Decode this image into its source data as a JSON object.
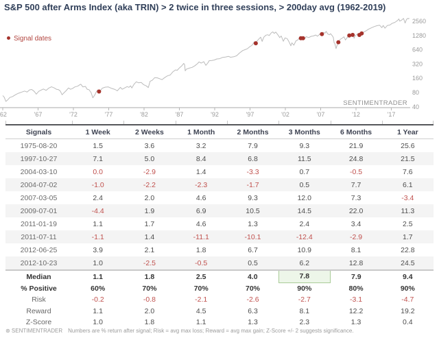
{
  "title": "S&P 500 after Arms Index (aka TRIN) > 2 twice in three sessions, > 200day avg (1962-2019)",
  "legend": {
    "label": "Signal dates"
  },
  "watermark": "SENTIMENTRADER",
  "footer": {
    "brand": "⊛ SENTIMENTRADER",
    "text": "Numbers are % return after signal; Risk = avg max loss; Reward = avg max gain; Z-Score +/- 2 suggests significance."
  },
  "colors": {
    "title": "#31405a",
    "line": "#bbbbbb",
    "signal_dot": "#a5332c",
    "negative": "#c0504d",
    "highlight_bg": "#edf6e9",
    "highlight_border": "#a9cb97",
    "axis_label": "#9a9a9a"
  },
  "chart_data": {
    "type": "line",
    "title": "S&P 500 after Arms Index (aka TRIN) > 2 twice in three sessions, > 200day avg (1962-2019)",
    "xlabel": "",
    "ylabel": "",
    "y_scale": "log2",
    "y_ticks": [
      "2560",
      "1280",
      "640",
      "320",
      "160",
      "80",
      "40"
    ],
    "y_tick_values": [
      2560,
      1280,
      640,
      320,
      160,
      80,
      40
    ],
    "x_ticks": [
      "'62",
      "'67",
      "'72",
      "'77",
      "'82",
      "'87",
      "'92",
      "'97",
      "'02",
      "'07",
      "'12",
      "'17"
    ],
    "x_tick_years": [
      1962,
      1967,
      1972,
      1977,
      1982,
      1987,
      1992,
      1997,
      2002,
      2007,
      2012,
      2017
    ],
    "x_range": [
      1962,
      2019.6
    ],
    "legend_position": "top-left",
    "grid": false,
    "series": [
      {
        "name": "S&P 500",
        "points": [
          [
            1962.0,
            69
          ],
          [
            1962.2,
            64
          ],
          [
            1962.45,
            52
          ],
          [
            1962.7,
            56
          ],
          [
            1963.0,
            63
          ],
          [
            1963.4,
            66
          ],
          [
            1963.8,
            72
          ],
          [
            1964.2,
            77
          ],
          [
            1964.7,
            82
          ],
          [
            1965.1,
            86
          ],
          [
            1965.45,
            82
          ],
          [
            1965.8,
            91
          ],
          [
            1966.1,
            93
          ],
          [
            1966.45,
            85
          ],
          [
            1966.75,
            74
          ],
          [
            1967.1,
            85
          ],
          [
            1967.5,
            91
          ],
          [
            1967.75,
            95
          ],
          [
            1968.15,
            89
          ],
          [
            1968.5,
            99
          ],
          [
            1968.9,
            106
          ],
          [
            1969.3,
            100
          ],
          [
            1969.6,
            94
          ],
          [
            1969.9,
            92
          ],
          [
            1970.15,
            86
          ],
          [
            1970.4,
            72
          ],
          [
            1970.7,
            80
          ],
          [
            1970.95,
            87
          ],
          [
            1971.3,
            100
          ],
          [
            1971.6,
            94
          ],
          [
            1971.85,
            97
          ],
          [
            1972.2,
            105
          ],
          [
            1972.6,
            109
          ],
          [
            1972.95,
            118
          ],
          [
            1973.05,
            120
          ],
          [
            1973.35,
            105
          ],
          [
            1973.7,
            108
          ],
          [
            1973.95,
            94
          ],
          [
            1974.2,
            92
          ],
          [
            1974.5,
            80
          ],
          [
            1974.75,
            62
          ],
          [
            1975.0,
            70
          ],
          [
            1975.25,
            83
          ],
          [
            1975.45,
            91
          ],
          [
            1975.63,
            84
          ],
          [
            1975.85,
            89
          ],
          [
            1976.1,
            99
          ],
          [
            1976.5,
            104
          ],
          [
            1976.95,
            105
          ],
          [
            1977.4,
            98
          ],
          [
            1977.9,
            93
          ],
          [
            1978.2,
            87
          ],
          [
            1978.65,
            103
          ],
          [
            1978.9,
            94
          ],
          [
            1979.2,
            99
          ],
          [
            1979.6,
            107
          ],
          [
            1979.85,
            103
          ],
          [
            1980.1,
            111
          ],
          [
            1980.27,
            100
          ],
          [
            1980.6,
            121
          ],
          [
            1980.9,
            135
          ],
          [
            1981.2,
            129
          ],
          [
            1981.6,
            131
          ],
          [
            1981.95,
            117
          ],
          [
            1982.3,
            111
          ],
          [
            1982.6,
            102
          ],
          [
            1982.85,
            138
          ],
          [
            1983.15,
            145
          ],
          [
            1983.5,
            165
          ],
          [
            1983.9,
            163
          ],
          [
            1984.3,
            155
          ],
          [
            1984.55,
            150
          ],
          [
            1984.9,
            165
          ],
          [
            1985.3,
            180
          ],
          [
            1985.7,
            188
          ],
          [
            1986.1,
            220
          ],
          [
            1986.45,
            240
          ],
          [
            1986.7,
            236
          ],
          [
            1987.0,
            265
          ],
          [
            1987.3,
            290
          ],
          [
            1987.62,
            330
          ],
          [
            1987.75,
            310
          ],
          [
            1987.83,
            230
          ],
          [
            1988.0,
            250
          ],
          [
            1988.4,
            262
          ],
          [
            1988.8,
            272
          ],
          [
            1989.2,
            295
          ],
          [
            1989.6,
            330
          ],
          [
            1989.78,
            355
          ],
          [
            1990.1,
            335
          ],
          [
            1990.45,
            360
          ],
          [
            1990.75,
            300
          ],
          [
            1991.05,
            340
          ],
          [
            1991.2,
            375
          ],
          [
            1991.6,
            380
          ],
          [
            1991.95,
            390
          ],
          [
            1992.3,
            410
          ],
          [
            1992.7,
            415
          ],
          [
            1993.1,
            440
          ],
          [
            1993.5,
            450
          ],
          [
            1993.95,
            465
          ],
          [
            1994.25,
            445
          ],
          [
            1994.7,
            455
          ],
          [
            1995.1,
            478
          ],
          [
            1995.5,
            545
          ],
          [
            1995.95,
            615
          ],
          [
            1996.3,
            645
          ],
          [
            1996.6,
            670
          ],
          [
            1996.95,
            740
          ],
          [
            1997.25,
            790
          ],
          [
            1997.5,
            890
          ],
          [
            1997.62,
            950
          ],
          [
            1997.72,
            920
          ],
          [
            1997.82,
            877
          ],
          [
            1998.0,
            980
          ],
          [
            1998.3,
            1100
          ],
          [
            1998.5,
            1180
          ],
          [
            1998.72,
            960
          ],
          [
            1998.95,
            1180
          ],
          [
            1999.25,
            1300
          ],
          [
            1999.5,
            1330
          ],
          [
            1999.72,
            1280
          ],
          [
            2000.0,
            1455
          ],
          [
            2000.22,
            1527
          ],
          [
            2000.42,
            1420
          ],
          [
            2000.65,
            1510
          ],
          [
            2000.95,
            1320
          ],
          [
            2001.2,
            1160
          ],
          [
            2001.42,
            1250
          ],
          [
            2001.72,
            966
          ],
          [
            2001.95,
            1140
          ],
          [
            2002.25,
            1100
          ],
          [
            2002.5,
            950
          ],
          [
            2002.78,
            777
          ],
          [
            2002.92,
            900
          ],
          [
            2003.2,
            800
          ],
          [
            2003.5,
            990
          ],
          [
            2003.75,
            1030
          ],
          [
            2004.0,
            1130
          ],
          [
            2004.19,
            1124
          ],
          [
            2004.5,
            1125
          ],
          [
            2004.65,
            1065
          ],
          [
            2004.95,
            1210
          ],
          [
            2005.3,
            1160
          ],
          [
            2005.65,
            1230
          ],
          [
            2005.95,
            1250
          ],
          [
            2006.3,
            1310
          ],
          [
            2006.55,
            1240
          ],
          [
            2006.95,
            1400
          ],
          [
            2007.17,
            1374
          ],
          [
            2007.45,
            1480
          ],
          [
            2007.6,
            1430
          ],
          [
            2007.78,
            1565
          ],
          [
            2008.0,
            1380
          ],
          [
            2008.25,
            1330
          ],
          [
            2008.4,
            1400
          ],
          [
            2008.65,
            1260
          ],
          [
            2008.8,
            1160
          ],
          [
            2008.9,
            900
          ],
          [
            2009.0,
            870
          ],
          [
            2009.17,
            677
          ],
          [
            2009.35,
            820
          ],
          [
            2009.5,
            923
          ],
          [
            2009.75,
            1060
          ],
          [
            2010.0,
            1115
          ],
          [
            2010.3,
            1200
          ],
          [
            2010.5,
            1030
          ],
          [
            2010.8,
            1180
          ],
          [
            2011.05,
            1282
          ],
          [
            2011.3,
            1330
          ],
          [
            2011.52,
            1319
          ],
          [
            2011.6,
            1345
          ],
          [
            2011.73,
            1120
          ],
          [
            2011.85,
            1250
          ],
          [
            2012.0,
            1310
          ],
          [
            2012.25,
            1400
          ],
          [
            2012.48,
            1314
          ],
          [
            2012.65,
            1440
          ],
          [
            2012.81,
            1413
          ],
          [
            2013.0,
            1480
          ],
          [
            2013.4,
            1600
          ],
          [
            2013.8,
            1750
          ],
          [
            2014.2,
            1870
          ],
          [
            2014.6,
            1980
          ],
          [
            2014.95,
            2060
          ],
          [
            2015.35,
            2110
          ],
          [
            2015.65,
            1880
          ],
          [
            2015.85,
            2080
          ],
          [
            2016.1,
            1830
          ],
          [
            2016.45,
            2090
          ],
          [
            2016.8,
            2130
          ],
          [
            2017.1,
            2300
          ],
          [
            2017.5,
            2430
          ],
          [
            2017.9,
            2670
          ],
          [
            2018.07,
            2870
          ],
          [
            2018.18,
            2580
          ],
          [
            2018.45,
            2700
          ],
          [
            2018.73,
            2930
          ],
          [
            2018.95,
            2350
          ],
          [
            2019.15,
            2800
          ],
          [
            2019.35,
            2945
          ],
          [
            2019.45,
            2885
          ],
          [
            2019.55,
            2960
          ]
        ]
      }
    ],
    "signals": [
      {
        "date": "1975-08-20",
        "year": 1975.63,
        "price": 84
      },
      {
        "date": "1997-10-27",
        "year": 1997.82,
        "price": 877
      },
      {
        "date": "2004-03-10",
        "year": 2004.19,
        "price": 1124
      },
      {
        "date": "2004-07-02",
        "year": 2004.5,
        "price": 1125
      },
      {
        "date": "2007-03-05",
        "year": 2007.17,
        "price": 1374
      },
      {
        "date": "2009-07-01",
        "year": 2009.5,
        "price": 923
      },
      {
        "date": "2011-01-19",
        "year": 2011.05,
        "price": 1282
      },
      {
        "date": "2011-07-11",
        "year": 2011.52,
        "price": 1319
      },
      {
        "date": "2012-06-25",
        "year": 2012.48,
        "price": 1314
      },
      {
        "date": "2012-10-23",
        "year": 2012.81,
        "price": 1413
      }
    ]
  },
  "table": {
    "headers": [
      "Signals",
      "1 Week",
      "2 Weeks",
      "1 Month",
      "2 Months",
      "3 Months",
      "6 Months",
      "1 Year"
    ],
    "rows": [
      {
        "label": "1975-08-20",
        "values": [
          "1.5",
          "3.6",
          "3.2",
          "7.9",
          "9.3",
          "21.9",
          "25.6"
        ]
      },
      {
        "label": "1997-10-27",
        "values": [
          "7.1",
          "5.0",
          "8.4",
          "6.8",
          "11.5",
          "24.8",
          "21.5"
        ]
      },
      {
        "label": "2004-03-10",
        "values": [
          "0.0",
          "-2.9",
          "1.4",
          "-3.3",
          "0.7",
          "-0.5",
          "7.6"
        ]
      },
      {
        "label": "2004-07-02",
        "values": [
          "-1.0",
          "-2.2",
          "-2.3",
          "-1.7",
          "0.5",
          "7.7",
          "6.1"
        ]
      },
      {
        "label": "2007-03-05",
        "values": [
          "2.4",
          "2.0",
          "4.6",
          "9.3",
          "12.0",
          "7.3",
          "-3.4"
        ]
      },
      {
        "label": "2009-07-01",
        "values": [
          "-4.4",
          "1.9",
          "6.9",
          "10.5",
          "14.5",
          "22.0",
          "11.3"
        ]
      },
      {
        "label": "2011-01-19",
        "values": [
          "1.1",
          "1.7",
          "4.6",
          "1.3",
          "2.4",
          "3.4",
          "2.5"
        ]
      },
      {
        "label": "2011-07-11",
        "values": [
          "-1.1",
          "1.4",
          "-11.1",
          "-10.1",
          "-12.4",
          "-2.9",
          "1.7"
        ]
      },
      {
        "label": "2012-06-25",
        "values": [
          "3.9",
          "2.1",
          "1.8",
          "6.7",
          "10.9",
          "8.1",
          "22.8"
        ]
      },
      {
        "label": "2012-10-23",
        "values": [
          "1.0",
          "-2.5",
          "-0.5",
          "0.5",
          "6.2",
          "12.8",
          "24.5"
        ]
      }
    ],
    "summary": [
      {
        "label": "Median",
        "type": "median",
        "values": [
          "1.1",
          "1.8",
          "2.5",
          "4.0",
          "7.8",
          "7.9",
          "9.4"
        ]
      },
      {
        "label": "% Positive",
        "type": "pct",
        "values": [
          "60%",
          "70%",
          "70%",
          "70%",
          "90%",
          "80%",
          "90%"
        ]
      },
      {
        "label": "Risk",
        "type": "plain",
        "values": [
          "-0.2",
          "-0.8",
          "-2.1",
          "-2.6",
          "-2.7",
          "-3.1",
          "-4.7"
        ]
      },
      {
        "label": "Reward",
        "type": "plain",
        "values": [
          "1.1",
          "2.0",
          "4.5",
          "6.3",
          "8.1",
          "12.2",
          "19.2"
        ]
      },
      {
        "label": "Z-Score",
        "type": "plain",
        "values": [
          "1.0",
          "1.8",
          "1.1",
          "1.3",
          "2.3",
          "1.3",
          "0.4"
        ]
      }
    ],
    "highlight": {
      "summary_index": 0,
      "value_index": 4
    }
  }
}
